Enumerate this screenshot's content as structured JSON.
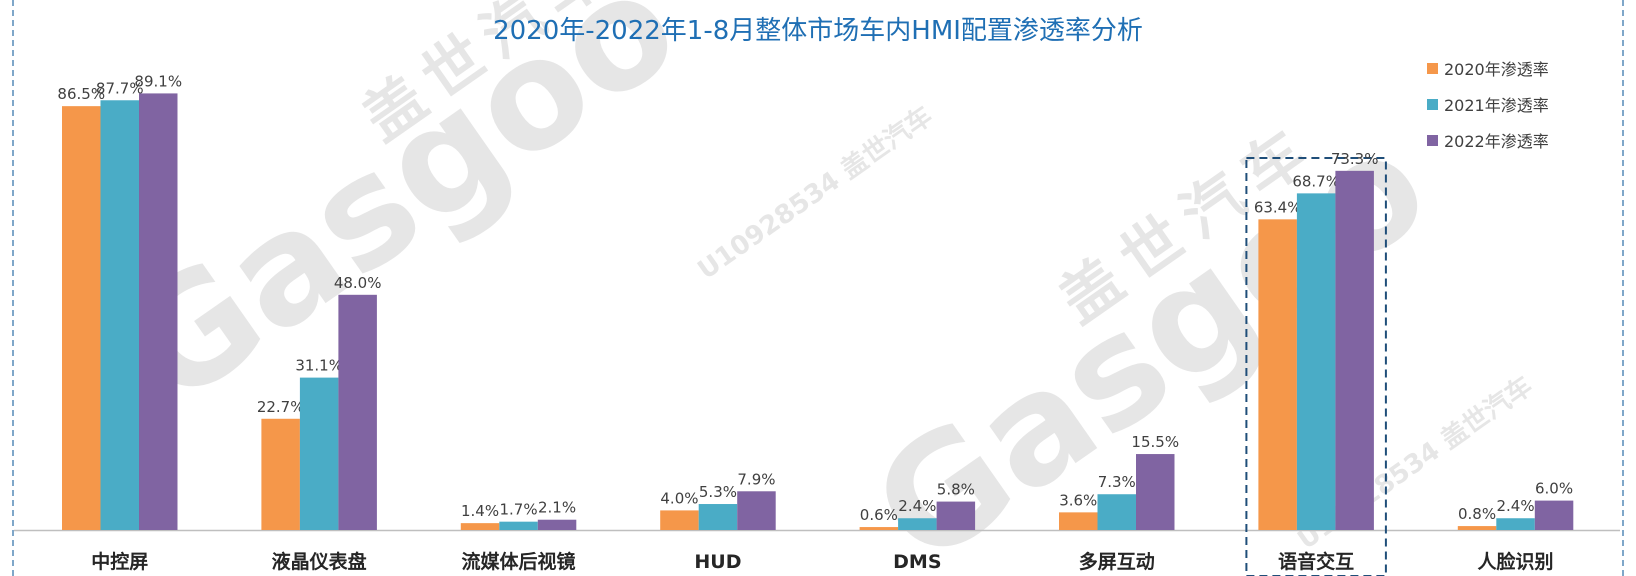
{
  "chart_data": {
    "type": "bar",
    "title": "2020年-2022年1-8月整体市场车内HMI配置渗透率分析",
    "categories": [
      "中控屏",
      "液晶仪表盘",
      "流媒体后视镜",
      "HUD",
      "DMS",
      "多屏互动",
      "语音交互",
      "人脸识别"
    ],
    "series": [
      {
        "name": "2020年渗透率",
        "values": [
          86.5,
          22.7,
          1.4,
          4.0,
          0.6,
          3.6,
          63.4,
          0.8
        ],
        "labels": [
          "86.5%",
          "22.7%",
          "1.4%",
          "4.0%",
          "0.6%",
          "3.6%",
          "63.4%",
          "0.8%"
        ]
      },
      {
        "name": "2021年渗透率",
        "values": [
          87.7,
          31.1,
          1.7,
          5.3,
          2.4,
          7.3,
          68.7,
          2.4
        ],
        "labels": [
          "87.7%",
          "31.1%",
          "1.7%",
          "5.3%",
          "2.4%",
          "7.3%",
          "68.7%",
          "2.4%"
        ]
      },
      {
        "name": "2022年渗透率",
        "values": [
          89.1,
          48.0,
          2.1,
          7.9,
          5.8,
          15.5,
          73.3,
          6.0
        ],
        "labels": [
          "89.1%",
          "48.0%",
          "2.1%",
          "7.9%",
          "5.8%",
          "15.5%",
          "73.3%",
          "6.0%"
        ]
      }
    ],
    "ylim": [
      0,
      100
    ],
    "grid": false,
    "legend": "top-right",
    "highlighted_category": "语音交互"
  },
  "watermarks": [
    "盖世汽车",
    "Gasgoo",
    "U10928534 盖世汽车"
  ],
  "colors": {
    "series": [
      "#f5974a",
      "#4aacc6",
      "#8064a2"
    ],
    "title": "#1f6fb4",
    "frame": "#7fa7c9",
    "highlight": "#1f4e79",
    "axis": "#bfbfbf",
    "label": "#404040"
  }
}
